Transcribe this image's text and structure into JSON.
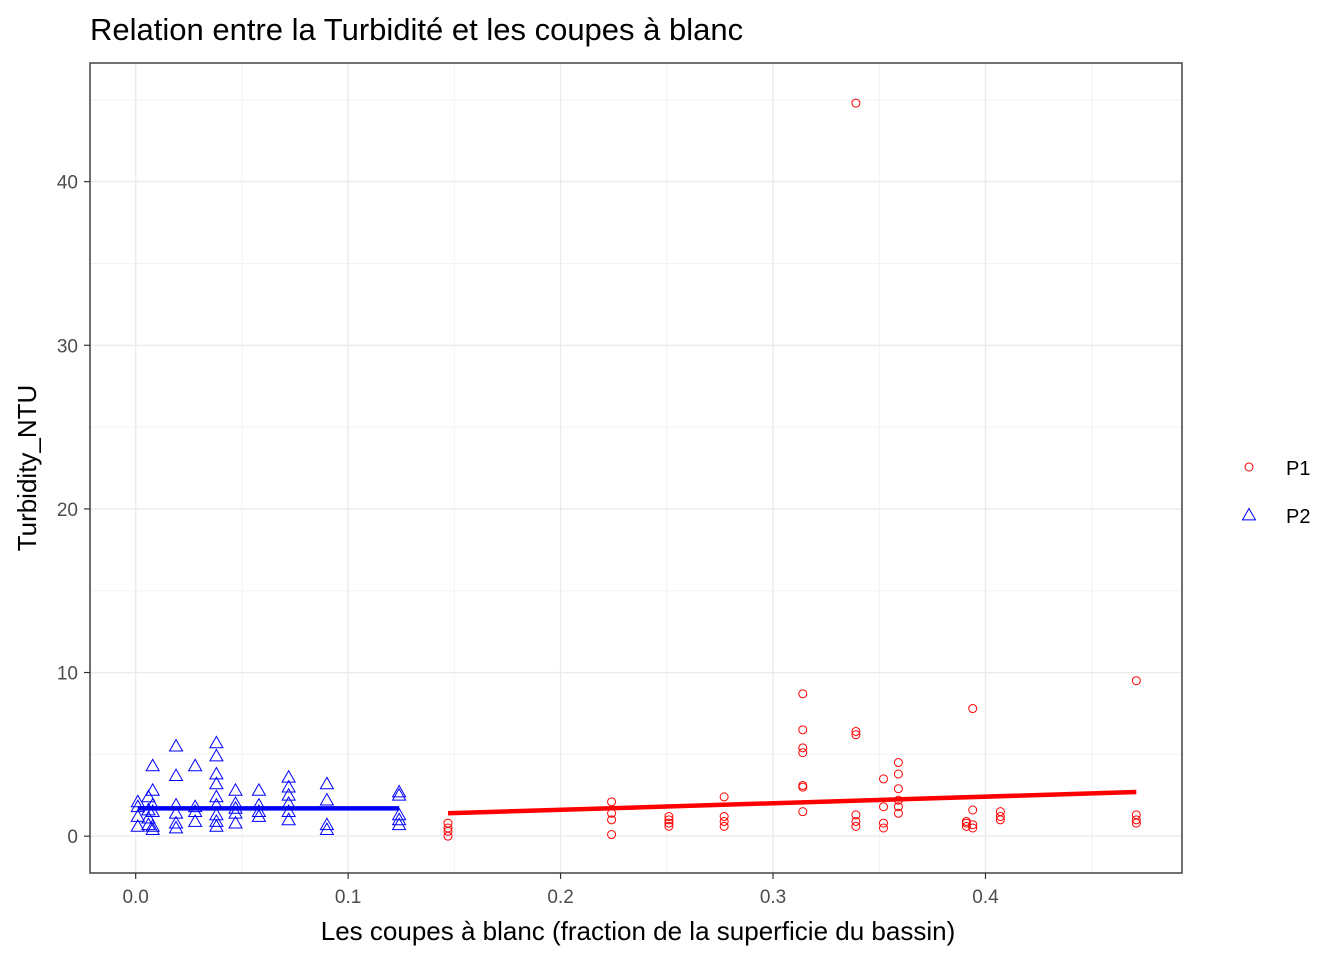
{
  "chart_data": {
    "type": "scatter",
    "title": "Relation entre la Turbidité et les coupes à blanc",
    "xlabel": "Les coupes à blanc (fraction de la superficie du bassin)",
    "ylabel": "Turbidity_NTU",
    "xlim": [
      -0.0215,
      0.4925
    ],
    "ylim": [
      -2.25,
      47.25
    ],
    "x_ticks": [
      0.0,
      0.1,
      0.2,
      0.3,
      0.4
    ],
    "x_tick_labels": [
      "0.0",
      "0.1",
      "0.2",
      "0.3",
      "0.4"
    ],
    "y_ticks": [
      0,
      10,
      20,
      30,
      40
    ],
    "y_tick_labels": [
      "0",
      "10",
      "20",
      "30",
      "40"
    ],
    "grid": true,
    "legend_position": "right",
    "series": [
      {
        "name": "P1",
        "marker": "circle",
        "color": "#ff0000",
        "points": [
          [
            0.147,
            0.0
          ],
          [
            0.147,
            0.3
          ],
          [
            0.147,
            0.5
          ],
          [
            0.147,
            0.8
          ],
          [
            0.224,
            0.1
          ],
          [
            0.224,
            1.0
          ],
          [
            0.224,
            1.4
          ],
          [
            0.224,
            2.1
          ],
          [
            0.251,
            0.6
          ],
          [
            0.251,
            0.8
          ],
          [
            0.251,
            1.0
          ],
          [
            0.251,
            1.2
          ],
          [
            0.277,
            0.6
          ],
          [
            0.277,
            0.9
          ],
          [
            0.277,
            1.2
          ],
          [
            0.277,
            2.4
          ],
          [
            0.314,
            1.5
          ],
          [
            0.314,
            3.0
          ],
          [
            0.314,
            3.1
          ],
          [
            0.314,
            5.1
          ],
          [
            0.314,
            5.4
          ],
          [
            0.314,
            6.5
          ],
          [
            0.314,
            8.7
          ],
          [
            0.339,
            0.6
          ],
          [
            0.339,
            0.9
          ],
          [
            0.339,
            1.3
          ],
          [
            0.339,
            6.2
          ],
          [
            0.339,
            6.4
          ],
          [
            0.339,
            44.8
          ],
          [
            0.352,
            0.5
          ],
          [
            0.352,
            0.8
          ],
          [
            0.352,
            1.8
          ],
          [
            0.352,
            3.5
          ],
          [
            0.359,
            1.4
          ],
          [
            0.359,
            1.8
          ],
          [
            0.359,
            2.2
          ],
          [
            0.359,
            2.9
          ],
          [
            0.359,
            3.8
          ],
          [
            0.359,
            4.5
          ],
          [
            0.391,
            0.6
          ],
          [
            0.391,
            0.8
          ],
          [
            0.391,
            0.9
          ],
          [
            0.394,
            0.5
          ],
          [
            0.394,
            0.7
          ],
          [
            0.394,
            1.6
          ],
          [
            0.394,
            7.8
          ],
          [
            0.407,
            1.0
          ],
          [
            0.407,
            1.2
          ],
          [
            0.407,
            1.5
          ],
          [
            0.471,
            0.8
          ],
          [
            0.471,
            1.0
          ],
          [
            0.471,
            1.3
          ],
          [
            0.471,
            9.5
          ]
        ],
        "fit": {
          "x": [
            0.147,
            0.471
          ],
          "y": [
            1.4,
            2.7
          ]
        }
      },
      {
        "name": "P2",
        "marker": "triangle",
        "color": "#0000ff",
        "points": [
          [
            0.001,
            0.6
          ],
          [
            0.001,
            1.2
          ],
          [
            0.001,
            1.8
          ],
          [
            0.001,
            2.1
          ],
          [
            0.006,
            0.7
          ],
          [
            0.006,
            1.1
          ],
          [
            0.006,
            1.6
          ],
          [
            0.006,
            2.4
          ],
          [
            0.008,
            0.4
          ],
          [
            0.008,
            0.6
          ],
          [
            0.008,
            1.5
          ],
          [
            0.008,
            1.9
          ],
          [
            0.008,
            2.8
          ],
          [
            0.008,
            4.3
          ],
          [
            0.019,
            0.5
          ],
          [
            0.019,
            0.8
          ],
          [
            0.019,
            1.4
          ],
          [
            0.019,
            1.9
          ],
          [
            0.019,
            3.7
          ],
          [
            0.019,
            5.5
          ],
          [
            0.028,
            0.9
          ],
          [
            0.028,
            1.5
          ],
          [
            0.028,
            1.8
          ],
          [
            0.028,
            4.3
          ],
          [
            0.038,
            0.6
          ],
          [
            0.038,
            0.9
          ],
          [
            0.038,
            1.3
          ],
          [
            0.038,
            1.9
          ],
          [
            0.038,
            2.4
          ],
          [
            0.038,
            3.2
          ],
          [
            0.038,
            3.8
          ],
          [
            0.038,
            4.9
          ],
          [
            0.038,
            5.7
          ],
          [
            0.047,
            0.8
          ],
          [
            0.047,
            1.4
          ],
          [
            0.047,
            1.7
          ],
          [
            0.047,
            2.0
          ],
          [
            0.047,
            2.8
          ],
          [
            0.058,
            1.2
          ],
          [
            0.058,
            1.5
          ],
          [
            0.058,
            1.9
          ],
          [
            0.058,
            2.8
          ],
          [
            0.072,
            1.0
          ],
          [
            0.072,
            1.5
          ],
          [
            0.072,
            2.0
          ],
          [
            0.072,
            2.5
          ],
          [
            0.072,
            3.0
          ],
          [
            0.072,
            3.6
          ],
          [
            0.09,
            0.4
          ],
          [
            0.09,
            0.7
          ],
          [
            0.09,
            2.2
          ],
          [
            0.09,
            3.2
          ],
          [
            0.124,
            0.7
          ],
          [
            0.124,
            1.0
          ],
          [
            0.124,
            1.3
          ],
          [
            0.124,
            2.5
          ],
          [
            0.124,
            2.7
          ]
        ],
        "fit": {
          "x": [
            0.001,
            0.124
          ],
          "y": [
            1.7,
            1.7
          ]
        }
      }
    ]
  }
}
